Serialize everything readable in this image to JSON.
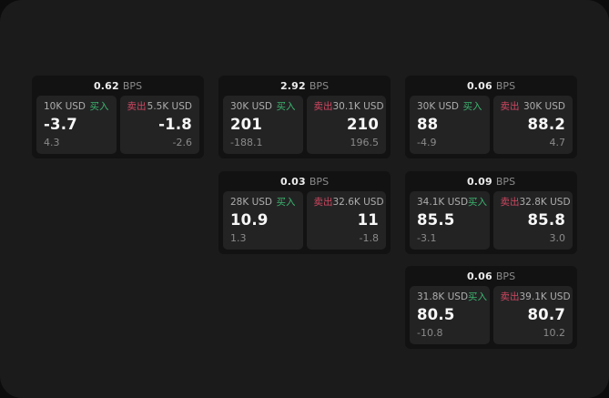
{
  "labels": {
    "buy": "买入",
    "sell": "卖出",
    "bps": "BPS"
  },
  "colors": {
    "outer_background": "#0c0c0d",
    "window_background": "#1b1b1c",
    "card_background": "#121213",
    "panel_background": "#232324",
    "buy_green": "#3cb46e",
    "sell_red": "#cf4760",
    "value_white": "#f7f7f7",
    "label_gray": "#adadad",
    "delta_gray": "#8a8a8a"
  },
  "cards": [
    {
      "bps": "0.62",
      "buy": {
        "amount": "10K USD",
        "value": "-3.7",
        "delta": "4.3"
      },
      "sell": {
        "amount": "5.5K USD",
        "value": "-1.8",
        "delta": "-2.6"
      }
    },
    {
      "bps": "2.92",
      "buy": {
        "amount": "30K USD",
        "value": "201",
        "delta": "-188.1"
      },
      "sell": {
        "amount": "30.1K USD",
        "value": "210",
        "delta": "196.5"
      }
    },
    {
      "bps": "0.06",
      "buy": {
        "amount": "30K USD",
        "value": "88",
        "delta": "-4.9"
      },
      "sell": {
        "amount": "30K USD",
        "value": "88.2",
        "delta": "4.7"
      }
    },
    {
      "bps": "0.03",
      "buy": {
        "amount": "28K USD",
        "value": "10.9",
        "delta": "1.3"
      },
      "sell": {
        "amount": "32.6K USD",
        "value": "11",
        "delta": "-1.8"
      }
    },
    {
      "bps": "0.09",
      "buy": {
        "amount": "34.1K USD",
        "value": "85.5",
        "delta": "-3.1"
      },
      "sell": {
        "amount": "32.8K USD",
        "value": "85.8",
        "delta": "3.0"
      }
    },
    {
      "bps": "0.06",
      "buy": {
        "amount": "31.8K USD",
        "value": "80.5",
        "delta": "-10.8"
      },
      "sell": {
        "amount": "39.1K USD",
        "value": "80.7",
        "delta": "10.2"
      }
    }
  ]
}
